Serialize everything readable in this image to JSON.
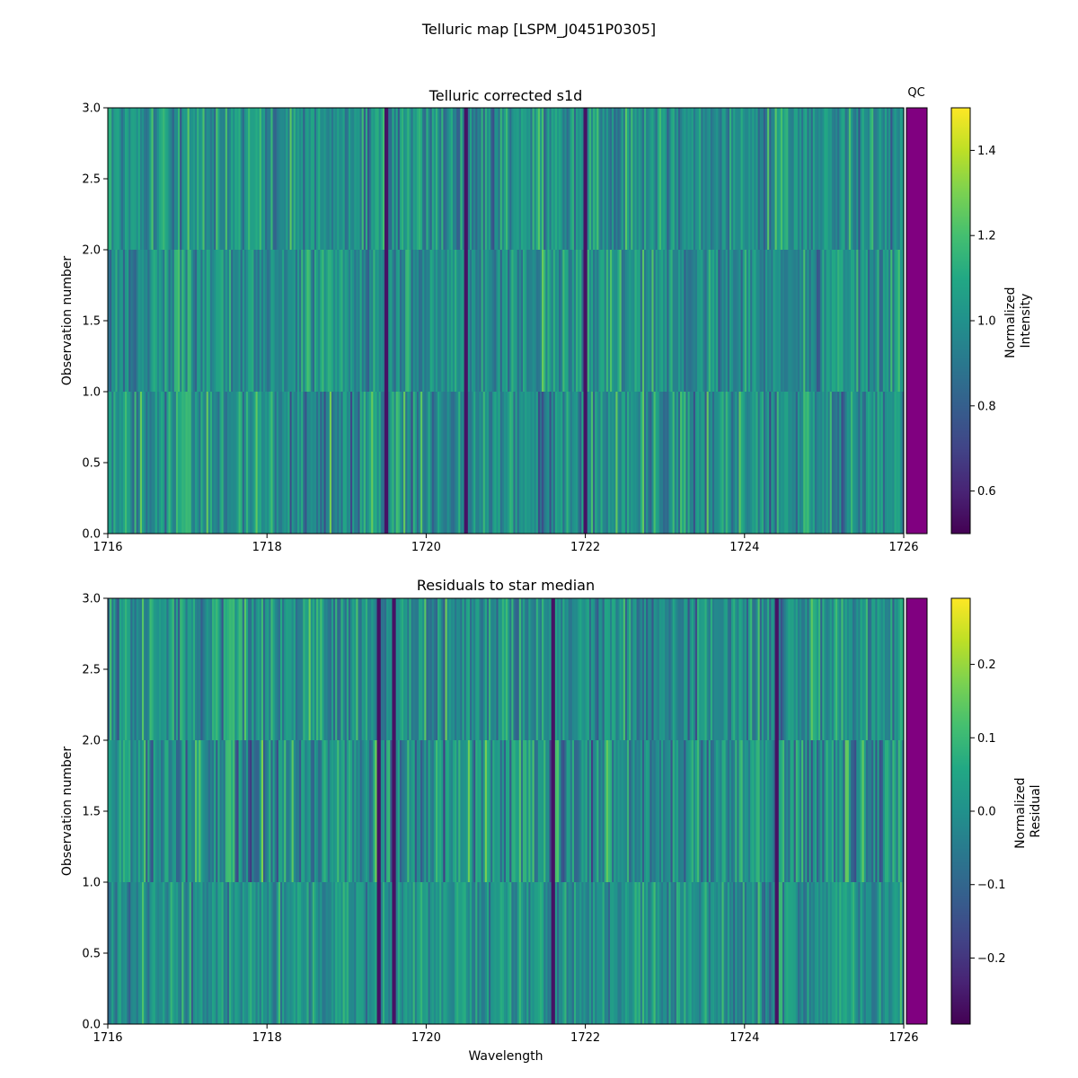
{
  "figure": {
    "suptitle": "Telluric map [LSPM_J0451P0305]"
  },
  "chart_data": [
    {
      "type": "heatmap",
      "title": "Telluric corrected s1d",
      "xlabel": "",
      "ylabel": "Observation number",
      "xlim": [
        1716,
        1726
      ],
      "ylim": [
        0,
        3
      ],
      "xticks": [
        "1716",
        "1718",
        "1720",
        "1722",
        "1724",
        "1726"
      ],
      "yticks": [
        "0.0",
        "0.5",
        "1.0",
        "1.5",
        "2.0",
        "2.5",
        "3.0"
      ],
      "rows": 3,
      "colormap": "viridis",
      "value_range": [
        0.5,
        1.5
      ],
      "row_mean": [
        1.0,
        1.0,
        1.0
      ],
      "row_spread": [
        0.14,
        0.12,
        0.13
      ],
      "dark_lines": [
        1719.5,
        1722.0,
        1720.5
      ],
      "colorbar": {
        "label_line1": "Normalized",
        "label_line2": "Intensity",
        "range": [
          0.5,
          1.5
        ],
        "ticks": [
          "0.6",
          "0.8",
          "1.0",
          "1.2",
          "1.4"
        ]
      },
      "qc": {
        "label": "QC",
        "color": "#800080"
      }
    },
    {
      "type": "heatmap",
      "title": "Residuals to star median",
      "xlabel": "Wavelength",
      "ylabel": "Observation number",
      "xlim": [
        1716,
        1726
      ],
      "ylim": [
        0,
        3
      ],
      "xticks": [
        "1716",
        "1718",
        "1720",
        "1722",
        "1724",
        "1726"
      ],
      "yticks": [
        "0.0",
        "0.5",
        "1.0",
        "1.5",
        "2.0",
        "2.5",
        "3.0"
      ],
      "rows": 3,
      "colormap": "viridis",
      "value_range": [
        -0.29,
        0.29
      ],
      "row_mean": [
        0.0,
        0.0,
        0.0
      ],
      "row_spread": [
        0.06,
        0.09,
        0.08
      ],
      "dark_lines": [
        1719.4,
        1719.6,
        1721.6,
        1724.4
      ],
      "colorbar": {
        "label_line1": "Normalized",
        "label_line2": "Residual",
        "range": [
          -0.29,
          0.29
        ],
        "ticks": [
          "−0.2",
          "−0.1",
          "0.0",
          "0.1",
          "0.2"
        ]
      },
      "qc": {
        "label": "",
        "color": "#800080"
      }
    }
  ]
}
